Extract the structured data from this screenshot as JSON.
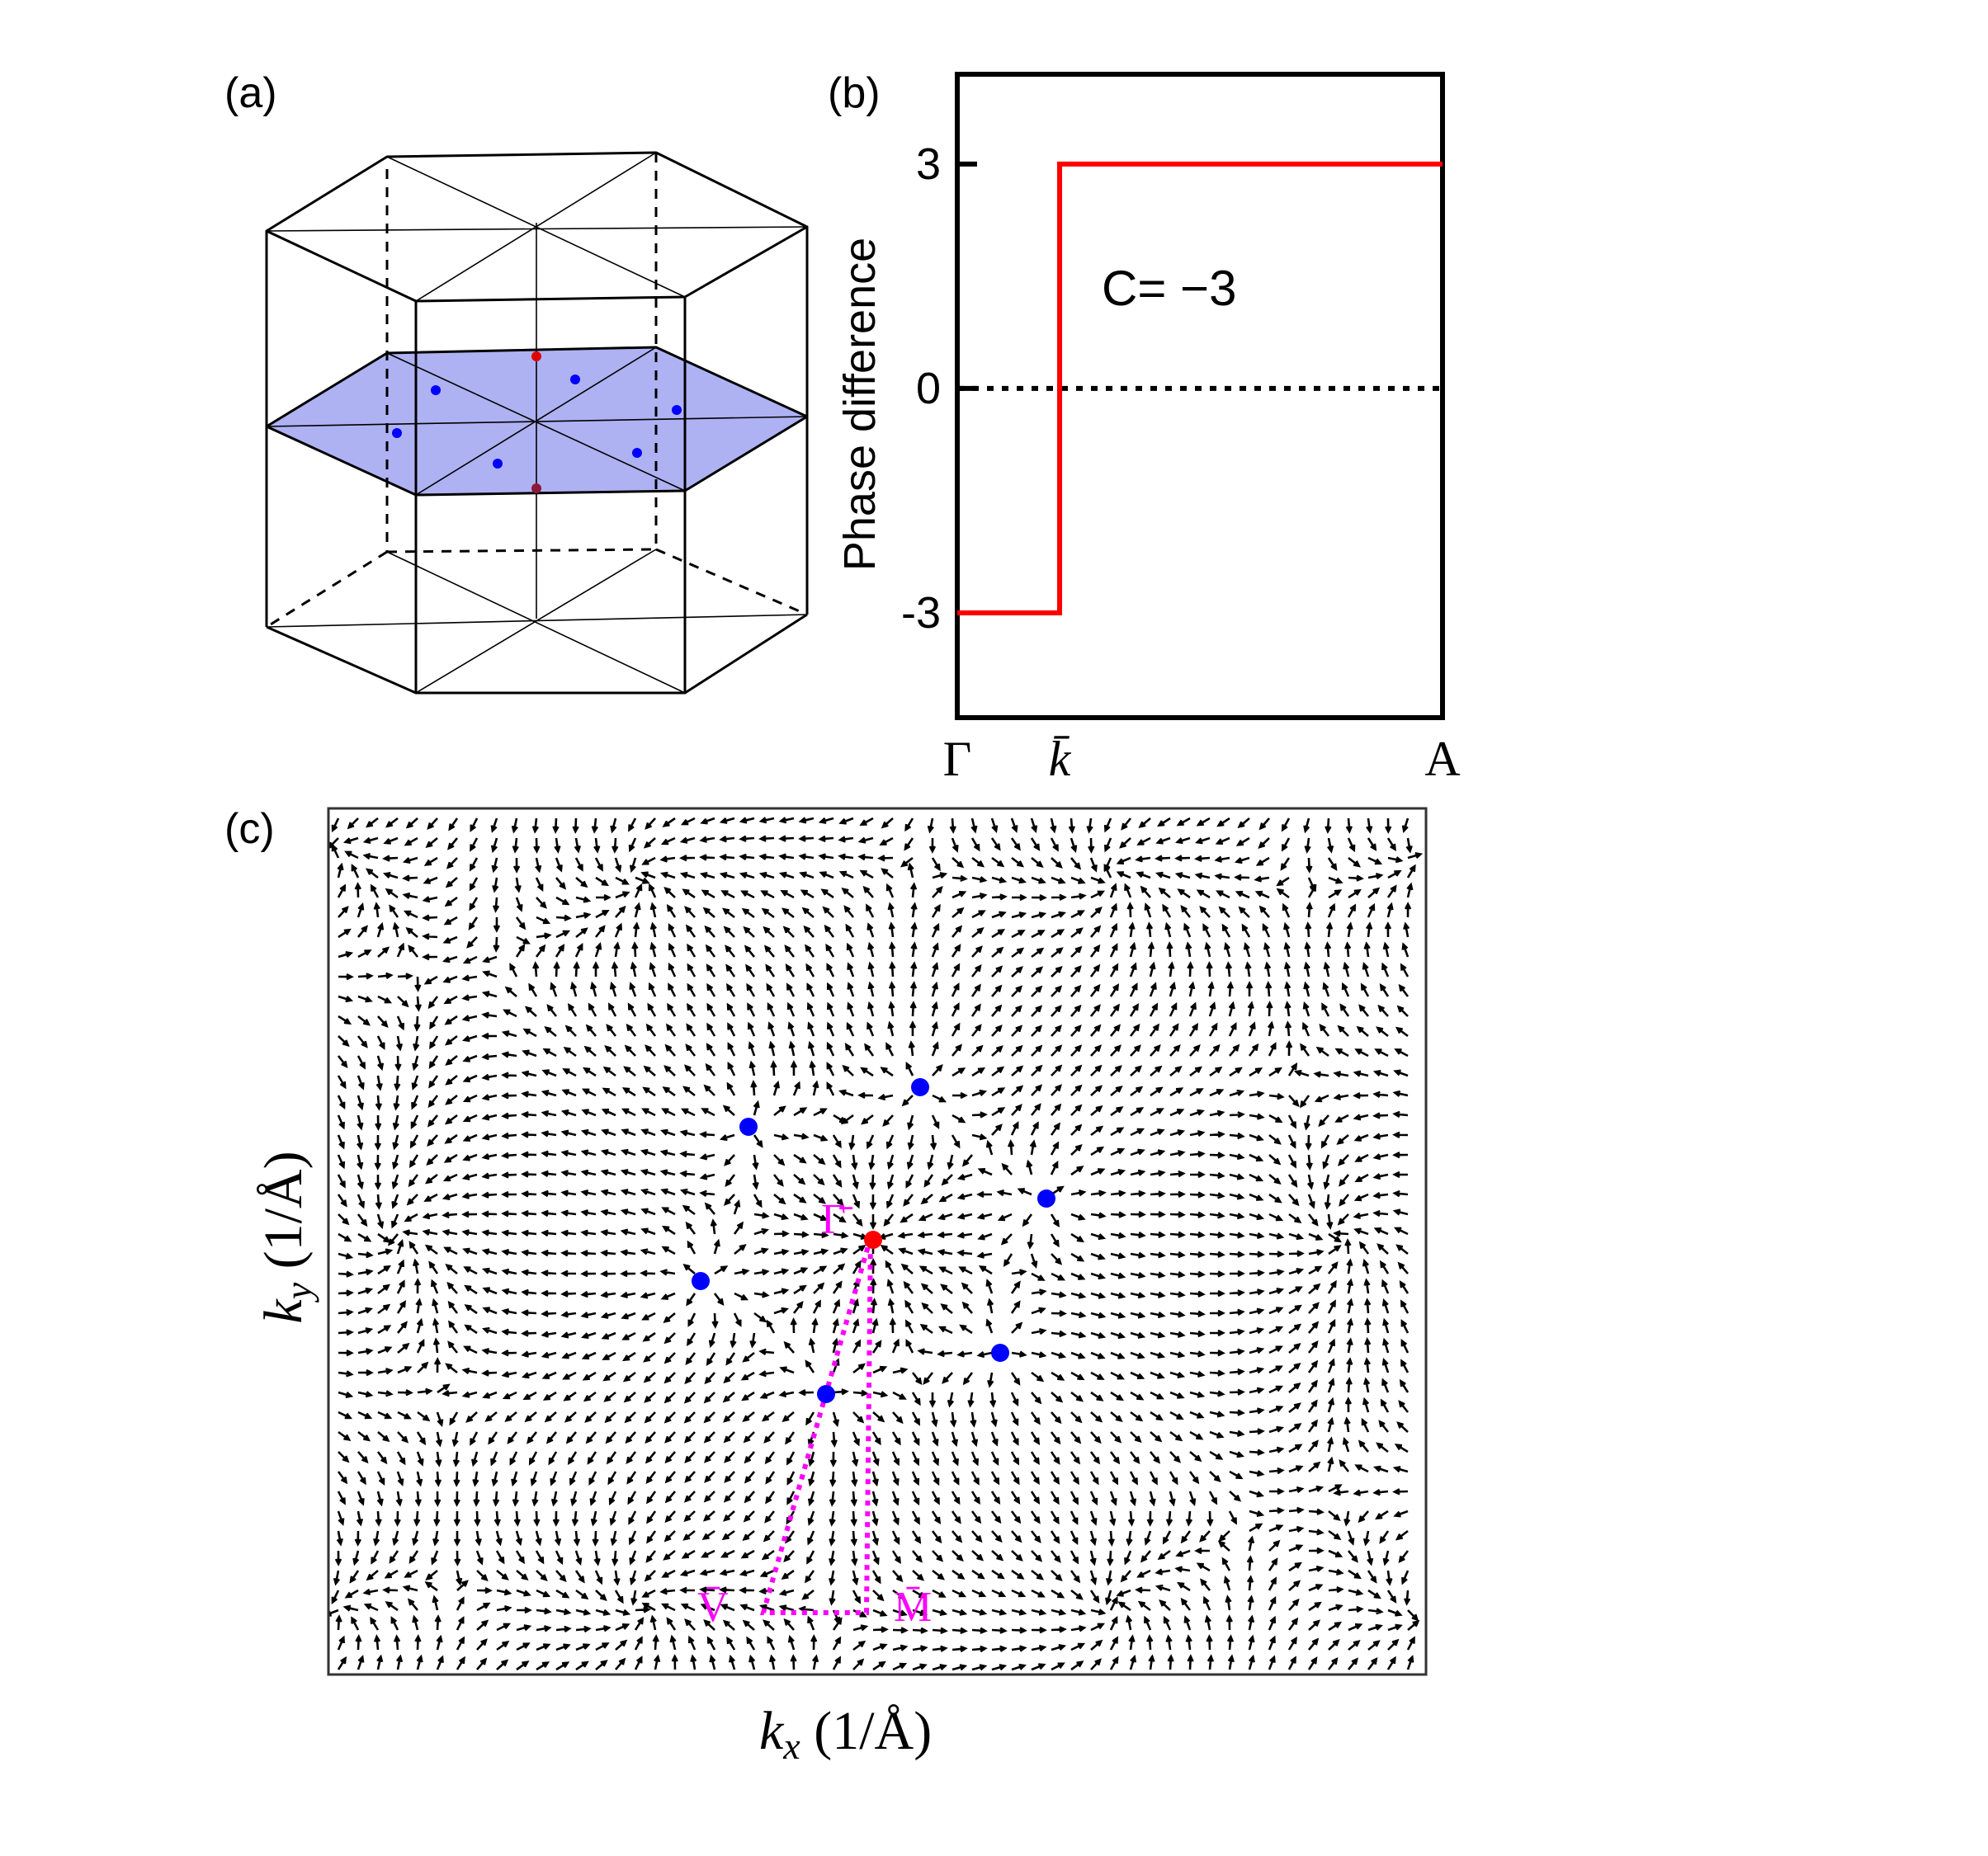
{
  "panel_a": {
    "label": "(a)"
  },
  "panel_b": {
    "label": "(b)",
    "annotation": "C= −3",
    "chart_data": {
      "type": "line",
      "title": "",
      "xlabel": "",
      "ylabel": "Phase difference",
      "x_ticks": [
        "Γ",
        "k̄",
        "A"
      ],
      "y_ticks": [
        "3",
        "0",
        "-3"
      ],
      "ylim": [
        -4.4,
        4.2
      ],
      "series": [
        {
          "name": "",
          "color": "#ff0000",
          "points": [
            {
              "x": "Γ",
              "y": -3
            },
            {
              "x": "k̄",
              "y": -3
            },
            {
              "x": "k̄",
              "y": 3
            },
            {
              "x": "A",
              "y": 3
            }
          ]
        }
      ],
      "reference_line": {
        "y": 0,
        "style": "dotted"
      },
      "grid": false
    }
  },
  "panel_c": {
    "label": "(c)",
    "xlabel_sym": "k",
    "xlabel_sub": "x",
    "xlabel_unit": " (1/Å)",
    "ylabel_sym": "k",
    "ylabel_sub": "y",
    "ylabel_unit": " (1/Å)",
    "point_labels": [
      "Γ̄",
      "V̄",
      "M̄"
    ],
    "colors": {
      "weyl_points": "#0000ff",
      "gamma": "#ff0000",
      "path": "#ff00ff"
    }
  }
}
